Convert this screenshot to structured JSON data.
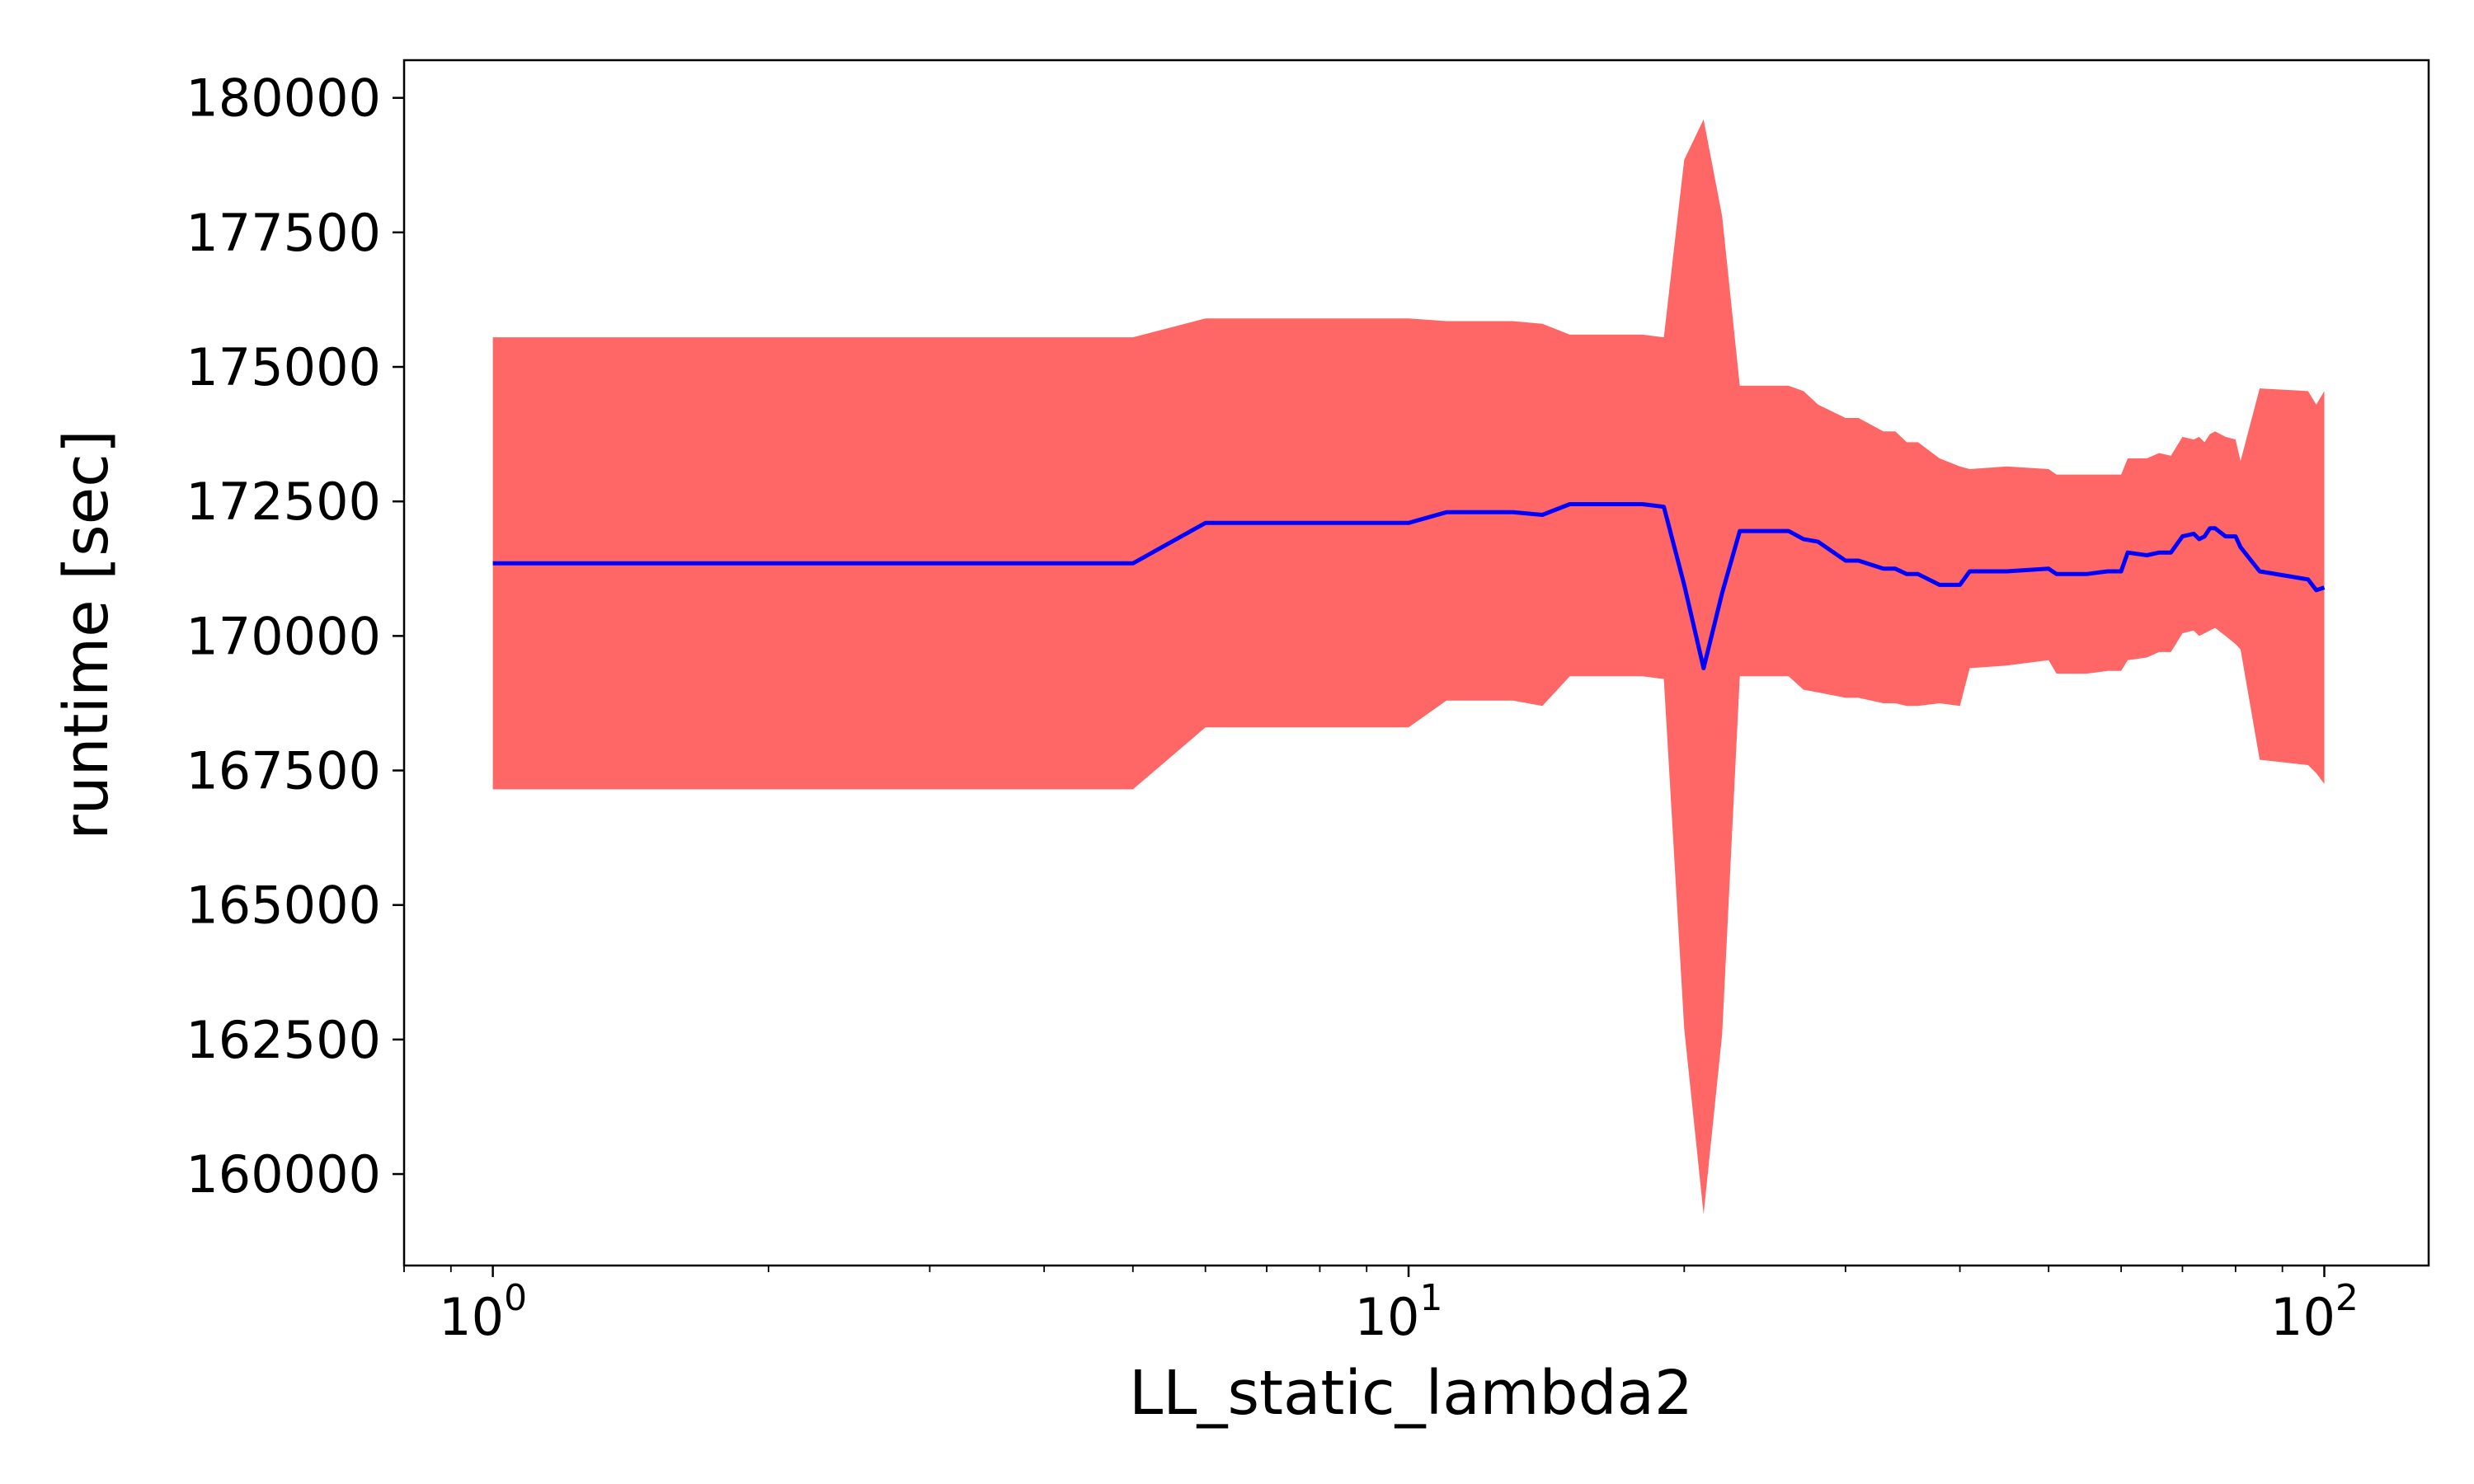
{
  "chart_data": {
    "type": "area",
    "title": "",
    "xlabel": "LL_static_lambda2",
    "ylabel": "runtime [sec]",
    "xscale": "log",
    "xlim": [
      0.8,
      130
    ],
    "ylim": [
      158300,
      180700
    ],
    "grid": false,
    "legend": "none",
    "colors": {
      "line": "#0000ff",
      "band": "#ff6666",
      "axes": "#000000"
    },
    "x_ticks": [
      {
        "value": 1,
        "base": "10",
        "exp": "0"
      },
      {
        "value": 10,
        "base": "10",
        "exp": "1"
      },
      {
        "value": 100,
        "base": "10",
        "exp": "2"
      }
    ],
    "y_ticks": [
      {
        "value": 160000,
        "label": "160000"
      },
      {
        "value": 162500,
        "label": "162500"
      },
      {
        "value": 165000,
        "label": "165000"
      },
      {
        "value": 167500,
        "label": "167500"
      },
      {
        "value": 170000,
        "label": "170000"
      },
      {
        "value": 172500,
        "label": "172500"
      },
      {
        "value": 175000,
        "label": "175000"
      },
      {
        "value": 177500,
        "label": "177500"
      },
      {
        "value": 180000,
        "label": "180000"
      }
    ],
    "x": [
      1,
      5,
      6,
      10,
      11,
      13,
      14,
      15,
      18,
      19,
      20,
      21,
      22,
      23,
      26,
      27,
      28,
      30,
      31,
      33,
      34,
      35,
      36,
      38,
      40,
      41,
      45,
      50,
      51,
      55,
      58,
      60,
      61,
      64,
      66,
      68,
      70,
      72,
      73,
      74,
      75,
      76,
      78,
      80,
      81,
      85,
      96,
      98,
      100
    ],
    "series": [
      {
        "values": [
          171350,
          171350,
          172100,
          172100,
          172300,
          172300,
          172250,
          172450,
          172450,
          172400,
          170950,
          169400,
          170800,
          171950,
          171950,
          171800,
          171750,
          171400,
          171400,
          171250,
          171250,
          171150,
          171150,
          170950,
          170950,
          171200,
          171200,
          171250,
          171150,
          171150,
          171200,
          171200,
          171550,
          171500,
          171550,
          171550,
          171850,
          171900,
          171800,
          171850,
          172000,
          172000,
          171850,
          171850,
          171650,
          171200,
          171050,
          170850,
          170900
        ],
        "upper": [
          175550,
          175550,
          175900,
          175900,
          175850,
          175850,
          175800,
          175600,
          175600,
          175550,
          178850,
          179600,
          177800,
          174650,
          174650,
          174550,
          174300,
          174050,
          174050,
          173800,
          173800,
          173600,
          173600,
          173300,
          173150,
          173100,
          173150,
          173100,
          173000,
          173000,
          173000,
          173000,
          173300,
          173300,
          173400,
          173350,
          173700,
          173650,
          173700,
          173600,
          173750,
          173800,
          173700,
          173650,
          173250,
          174600,
          174550,
          174300,
          174550
        ],
        "lower": [
          167150,
          167150,
          168300,
          168300,
          168800,
          168800,
          168700,
          169250,
          169250,
          169200,
          162700,
          159250,
          162600,
          169250,
          169250,
          169000,
          168950,
          168850,
          168850,
          168750,
          168750,
          168700,
          168700,
          168750,
          168700,
          169400,
          169450,
          169550,
          169300,
          169300,
          169350,
          169350,
          169550,
          169600,
          169700,
          169700,
          170050,
          170100,
          170000,
          170050,
          170100,
          170150,
          170000,
          169850,
          169750,
          167700,
          167600,
          167450,
          167250
        ]
      }
    ]
  }
}
